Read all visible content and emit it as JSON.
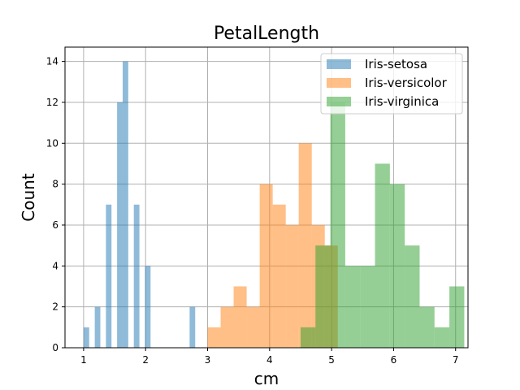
{
  "chart_data": {
    "type": "histogram",
    "title": "PetalLength",
    "xlabel": "cm",
    "ylabel": "Count",
    "xlim": [
      0.7,
      7.2
    ],
    "ylim": [
      0,
      14.7
    ],
    "xticks": [
      1,
      2,
      3,
      4,
      5,
      6,
      7
    ],
    "yticks": [
      0,
      2,
      4,
      6,
      8,
      10,
      12,
      14
    ],
    "grid": true,
    "legend_position": "top-right",
    "series": [
      {
        "name": "Iris-setosa",
        "color": "#1f77b4",
        "bin_start": 1.0,
        "bin_width": 0.09,
        "counts": [
          1,
          0,
          2,
          0,
          7,
          0,
          12,
          14,
          0,
          7,
          0,
          4,
          0,
          0,
          0,
          0,
          0,
          0,
          0,
          2
        ]
      },
      {
        "name": "Iris-versicolor",
        "color": "#ff7f0e",
        "bin_start": 3.0,
        "bin_width": 0.21,
        "counts": [
          1,
          2,
          3,
          2,
          8,
          7,
          6,
          10,
          6,
          5
        ]
      },
      {
        "name": "Iris-virginica",
        "color": "#2ca02c",
        "bin_start": 4.5,
        "bin_width": 0.24,
        "counts": [
          1,
          5,
          12,
          4,
          4,
          9,
          8,
          5,
          2,
          1,
          3
        ]
      }
    ]
  }
}
